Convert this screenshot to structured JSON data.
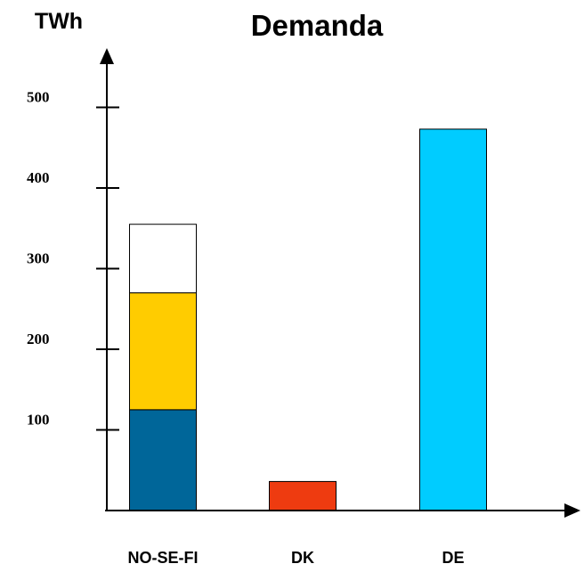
{
  "chart_data": {
    "type": "bar",
    "title": "Demanda",
    "ylabel": "TWh",
    "xlabel": "",
    "ylim": [
      0,
      560
    ],
    "yticks": [
      100,
      200,
      300,
      400,
      500
    ],
    "categories": [
      "NO-SE-FI",
      "DK",
      "DE"
    ],
    "bars": [
      {
        "category": "NO-SE-FI",
        "segments": [
          {
            "value": 125,
            "color": "#006699"
          },
          {
            "value": 145,
            "color": "#FFCC00"
          },
          {
            "value": 85,
            "color": "#FFFFFF"
          }
        ]
      },
      {
        "category": "DK",
        "segments": [
          {
            "value": 36,
            "color": "#EE3B10"
          }
        ]
      },
      {
        "category": "DE",
        "segments": [
          {
            "value": 473,
            "color": "#00CCFF"
          }
        ]
      }
    ],
    "grid": false,
    "legend": "none"
  }
}
